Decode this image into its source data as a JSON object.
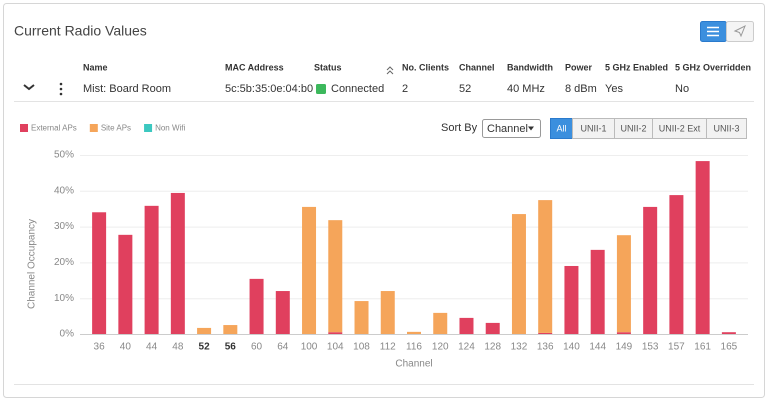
{
  "header": {
    "title": "Current Radio Values"
  },
  "table": {
    "columns": [
      "Name",
      "MAC Address",
      "Status",
      "No. Clients",
      "Channel",
      "Bandwidth",
      "Power",
      "5 GHz Enabled",
      "5 GHz Overridden"
    ],
    "rows": [
      [
        "Mist: Board Room",
        "5c:5b:35:0e:04:b0",
        "Connected",
        "2",
        "52",
        "40 MHz",
        "8 dBm",
        "Yes",
        "No"
      ]
    ]
  },
  "controls": {
    "sort_label": "Sort By",
    "sort_value": "Channel",
    "bands": [
      "All",
      "UNII-1",
      "UNII-2",
      "UNII-2 Ext",
      "UNII-3"
    ],
    "active_band": 0
  },
  "chart_data": {
    "type": "bar",
    "stacked": true,
    "x_label": "Channel",
    "y_label": "Channel Occupancy",
    "categories": [
      "36",
      "40",
      "44",
      "48",
      "52",
      "56",
      "60",
      "64",
      "100",
      "104",
      "108",
      "112",
      "116",
      "120",
      "124",
      "128",
      "132",
      "136",
      "140",
      "144",
      "149",
      "153",
      "157",
      "161",
      "165"
    ],
    "bold_categories": [
      "52",
      "56"
    ],
    "series": [
      {
        "name": "External APs",
        "color": "#e0405e",
        "values": [
          34,
          27.7,
          35.8,
          39.4,
          0,
          0,
          15.4,
          12,
          0,
          0.5,
          0,
          0,
          0,
          0,
          4.5,
          3.1,
          0,
          0.3,
          19,
          23.5,
          0.5,
          35.5,
          38.8,
          48.3,
          0.5
        ]
      },
      {
        "name": "Site APs",
        "color": "#f5a55a",
        "values": [
          0,
          0,
          0,
          0,
          1.7,
          2.5,
          0,
          0,
          35.5,
          31.3,
          9.2,
          12,
          0.6,
          5.9,
          0,
          0,
          33.5,
          37.1,
          0,
          0,
          27.1,
          0,
          0,
          0,
          0
        ]
      },
      {
        "name": "Non Wifi",
        "color": "#3cc8c0",
        "values": [
          0,
          0,
          0,
          0,
          0,
          0,
          0,
          0,
          0,
          0,
          0,
          0,
          0,
          0,
          0,
          0,
          0,
          0,
          0,
          0,
          0,
          0,
          0,
          0,
          0
        ]
      }
    ],
    "ylim": [
      0,
      50
    ],
    "yticks": [
      {
        "value": 0,
        "label": "0%"
      },
      {
        "value": 10,
        "label": "10%"
      },
      {
        "value": 20,
        "label": "20%"
      },
      {
        "value": 30,
        "label": "30%"
      },
      {
        "value": 40,
        "label": "40%"
      },
      {
        "value": 50,
        "label": "50%"
      }
    ],
    "grid": true,
    "legend": "top-left"
  }
}
